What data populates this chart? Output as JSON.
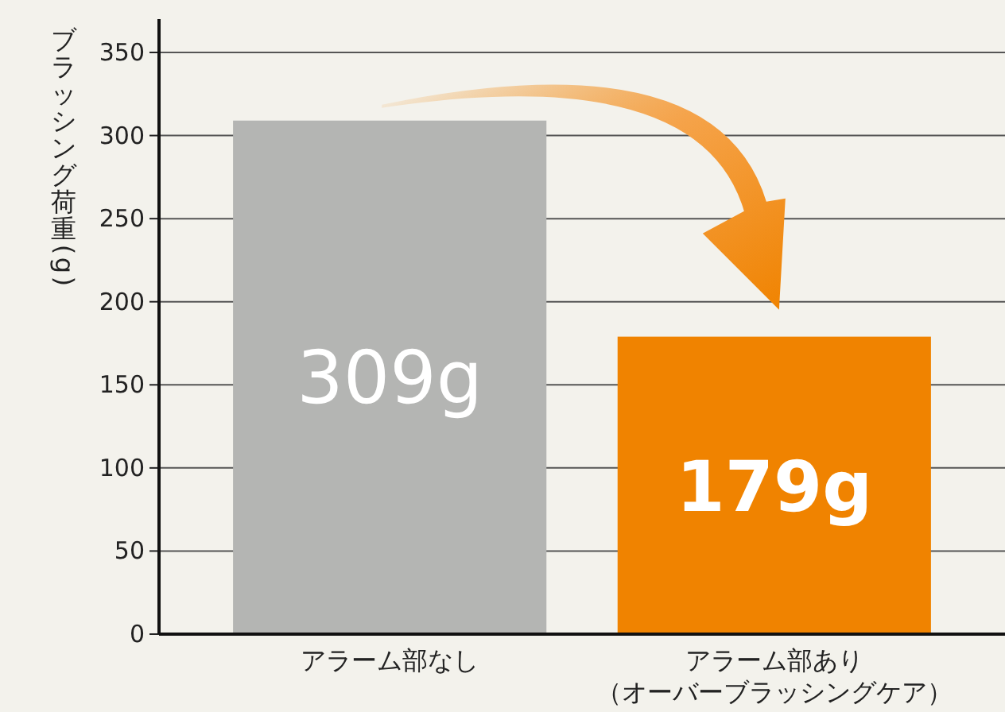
{
  "chart_data": {
    "type": "bar",
    "ylabel": "ブラッシング荷重(g)",
    "categories": [
      "アラーム部なし",
      "アラーム部あり（オーバーブラッシングケア）"
    ],
    "values": [
      309,
      179
    ],
    "colors": [
      "#b4b5b3",
      "#f08300"
    ],
    "value_labels": [
      "309g",
      "179g"
    ],
    "ylim": [
      0,
      350
    ],
    "yticks": [
      0,
      50,
      100,
      150,
      200,
      250,
      300,
      350
    ],
    "grid": "y"
  }
}
